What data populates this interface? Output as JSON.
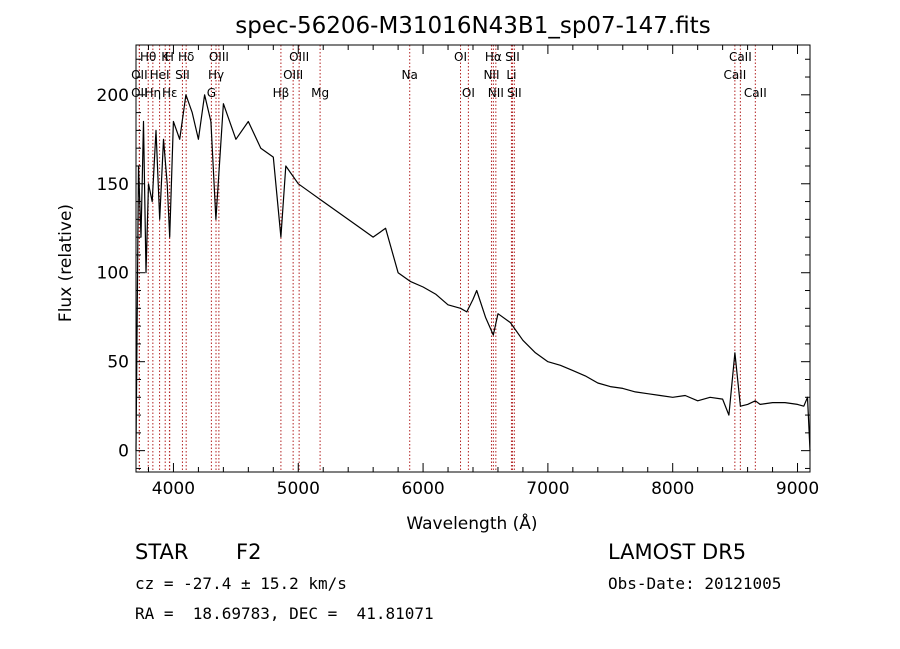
{
  "chart_data": {
    "type": "line",
    "title": "spec-56206-M31016N43B1_sp07-147.fits",
    "xlabel": "Wavelength (Å)",
    "ylabel": "Flux (relative)",
    "xlim": [
      3700,
      9100
    ],
    "ylim": [
      -12,
      228
    ],
    "xticks": [
      4000,
      5000,
      6000,
      7000,
      8000,
      9000
    ],
    "yticks": [
      0,
      50,
      100,
      150,
      200
    ],
    "grid": false,
    "line_color": "#000000",
    "marker_color": "#b22222",
    "series": [
      {
        "x": [
          3700,
          3720,
          3740,
          3760,
          3780,
          3800,
          3830,
          3860,
          3890,
          3920,
          3950,
          3970,
          4000,
          4050,
          4100,
          4150,
          4200,
          4250,
          4300,
          4340,
          4400,
          4500,
          4600,
          4700,
          4800,
          4861,
          4900,
          5000,
          5100,
          5200,
          5300,
          5400,
          5500,
          5600,
          5700,
          5800,
          5900,
          6000,
          6100,
          6200,
          6300,
          6350,
          6400,
          6430,
          6500,
          6563,
          6600,
          6700,
          6800,
          6900,
          7000,
          7100,
          7200,
          7300,
          7400,
          7500,
          7600,
          7700,
          7800,
          7900,
          8000,
          8100,
          8200,
          8300,
          8400,
          8450,
          8498,
          8542,
          8600,
          8662,
          8700,
          8800,
          8900,
          9000,
          9050,
          9080,
          9100
        ],
        "y": [
          0,
          160,
          120,
          185,
          100,
          150,
          140,
          180,
          130,
          175,
          150,
          120,
          185,
          175,
          200,
          190,
          175,
          200,
          185,
          130,
          195,
          175,
          185,
          170,
          165,
          120,
          160,
          150,
          145,
          140,
          135,
          130,
          125,
          120,
          125,
          100,
          95,
          92,
          88,
          82,
          80,
          78,
          85,
          90,
          75,
          65,
          77,
          72,
          62,
          55,
          50,
          48,
          45,
          42,
          38,
          36,
          35,
          33,
          32,
          31,
          30,
          31,
          28,
          30,
          29,
          20,
          55,
          25,
          26,
          28,
          26,
          27,
          27,
          26,
          25,
          30,
          0
        ]
      }
    ],
    "line_markers": [
      {
        "label": "Hθ",
        "x": 3798,
        "row": 0
      },
      {
        "label": "OII",
        "x": 3727,
        "row": 1
      },
      {
        "label": "OII",
        "x": 3727,
        "row": 2
      },
      {
        "label": "K",
        "x": 3934,
        "row": 0
      },
      {
        "label": "H",
        "x": 3968,
        "row": 0
      },
      {
        "label": "HeI",
        "x": 3889,
        "row": 1
      },
      {
        "label": "Hη",
        "x": 3835,
        "row": 2
      },
      {
        "label": "Hε",
        "x": 3970,
        "row": 2
      },
      {
        "label": "Hδ",
        "x": 4102,
        "row": 0
      },
      {
        "label": "SII",
        "x": 4072,
        "row": 1
      },
      {
        "label": "OIII",
        "x": 4364,
        "row": 0
      },
      {
        "label": "Hγ",
        "x": 4341,
        "row": 1
      },
      {
        "label": "G",
        "x": 4304,
        "row": 2
      },
      {
        "label": "OIII",
        "x": 5007,
        "row": 0
      },
      {
        "label": "OIII",
        "x": 4959,
        "row": 1
      },
      {
        "label": "Hβ",
        "x": 4861,
        "row": 2
      },
      {
        "label": "Mg",
        "x": 5175,
        "row": 2
      },
      {
        "label": "Na",
        "x": 5893,
        "row": 1
      },
      {
        "label": "OI",
        "x": 6300,
        "row": 0
      },
      {
        "label": "OI",
        "x": 6363,
        "row": 2
      },
      {
        "label": "Hα",
        "x": 6563,
        "row": 0
      },
      {
        "label": "SII",
        "x": 6716,
        "row": 0
      },
      {
        "label": "NII",
        "x": 6548,
        "row": 1
      },
      {
        "label": "Li",
        "x": 6708,
        "row": 1
      },
      {
        "label": "NII",
        "x": 6583,
        "row": 2
      },
      {
        "label": "SII",
        "x": 6731,
        "row": 2
      },
      {
        "label": "CaII",
        "x": 8542,
        "row": 0
      },
      {
        "label": "CaII",
        "x": 8498,
        "row": 1
      },
      {
        "label": "CaII",
        "x": 8662,
        "row": 2
      }
    ]
  },
  "info": {
    "object_class": "STAR",
    "subclass": "F2",
    "survey": "LAMOST DR5",
    "cz": "cz = -27.4 ± 15.2 km/s",
    "obs_date": "Obs-Date: 20121005",
    "coords": "RA =  18.69783, DEC =  41.81071"
  }
}
